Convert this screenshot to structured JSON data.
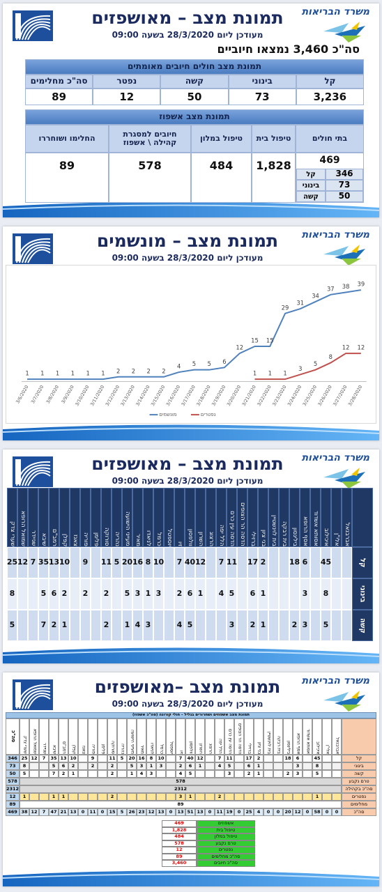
{
  "slide1": {
    "ministry": "משרד הבריאות",
    "title": "תמונת מצב – מאושפזים",
    "subtitle": "מעודכן ליום 28/3/2020 בשעה 09:00",
    "bullet": "סה\"כ 3,460 נמצאו חיוביים",
    "confirmed": {
      "title": "תמונת מצב חולים חיובים מאומתים",
      "headers": [
        "קל",
        "בינוני",
        "קשה",
        "נפטר",
        "סה\"כ מחלימים"
      ],
      "values": [
        "3,236",
        "73",
        "50",
        "12",
        "89"
      ]
    },
    "hospitalization": {
      "title": "תמונת מצב אשפוז",
      "headers": [
        "בתי חולים",
        "טיפול בית",
        "טיפול במלון",
        "חיובים למסגרת קהילה \\ אשפוז",
        "החלימו ושוחררו"
      ],
      "values": [
        "469",
        "1,828",
        "484",
        "578",
        "89"
      ],
      "breakdown": [
        {
          "label": "קל",
          "value": 346
        },
        {
          "label": "בינוני",
          "value": 73
        },
        {
          "label": "קשה",
          "value": 50
        }
      ]
    }
  },
  "slide2": {
    "ministry": "משרד הבריאות",
    "title": "תמונת מצב – מונשמים",
    "subtitle": "מעודכן ליום 28/3/2020 בשעה 09:00"
  },
  "chart_data": {
    "type": "line",
    "x": [
      "3/6/2020",
      "3/7/2020",
      "3/8/2020",
      "3/9/2020",
      "3/10/2020",
      "3/11/2020",
      "3/12/2020",
      "3/13/2020",
      "3/14/2020",
      "3/15/2020",
      "3/16/2020",
      "3/17/2020",
      "3/18/2020",
      "3/19/2020",
      "3/20/2020",
      "3/21/2020",
      "3/22/2020",
      "3/23/2020",
      "3/24/2020",
      "3/25/2020",
      "3/26/2020",
      "3/27/2020",
      "3/28/2020"
    ],
    "series": [
      {
        "name": "מונשמים",
        "color": "#4f81bd",
        "values": [
          1,
          1,
          1,
          1,
          1,
          1,
          2,
          2,
          2,
          2,
          4,
          5,
          5,
          6,
          12,
          15,
          15,
          29,
          31,
          34,
          37,
          38,
          39
        ]
      },
      {
        "name": "נפטרים",
        "color": "#c0504d",
        "values": [
          null,
          null,
          null,
          null,
          null,
          null,
          null,
          null,
          null,
          null,
          null,
          null,
          null,
          null,
          null,
          1,
          1,
          1,
          3,
          5,
          8,
          12,
          12
        ]
      }
    ],
    "ylim": [
      0,
      45
    ],
    "legend": "bottom"
  },
  "hospitals": [
    "שערי צדק",
    "שמואל הרופא",
    "שניידר",
    "שיבא",
    "רמב\"ם",
    "קפלן",
    "צאנז",
    "פוריה",
    "פלימן",
    "סורוקה",
    "נהריה",
    "מעייני הישועה",
    "מאיר",
    "לניאדו",
    "כרמל",
    "יוספטל",
    "זיו",
    "וולפסון",
    "השרון",
    "הרצוג",
    "הלל יפה",
    "הדסה עין כרם",
    "הדסה הר הצופים",
    "ברזילי",
    "בני ציון",
    "בית לוינשטיין",
    "בית רבקה",
    "בילינסון",
    "אסף הרופא",
    "אסותא אשדוד",
    "איכילוב",
    "אלי\"ן",
    "אברבנאל"
  ],
  "slide3": {
    "ministry": "משרד הבריאות",
    "title": "תמונת מצב – מאושפזים",
    "subtitle": "מעודכן ליום 28/3/2020 בשעה 09:00",
    "rows": [
      {
        "label": "קל",
        "values": [
          25,
          12,
          7,
          35,
          13,
          10,
          null,
          9,
          null,
          11,
          5,
          20,
          16,
          8,
          10,
          null,
          7,
          40,
          12,
          null,
          7,
          11,
          null,
          17,
          2,
          null,
          null,
          18,
          6,
          null,
          45,
          null,
          null
        ]
      },
      {
        "label": "בינוני",
        "values": [
          8,
          null,
          null,
          5,
          6,
          2,
          null,
          2,
          null,
          2,
          null,
          5,
          3,
          1,
          3,
          null,
          2,
          6,
          1,
          null,
          4,
          5,
          null,
          6,
          1,
          null,
          null,
          null,
          3,
          null,
          8,
          null,
          null
        ]
      },
      {
        "label": "קשה",
        "values": [
          5,
          null,
          null,
          7,
          2,
          1,
          null,
          null,
          null,
          2,
          null,
          1,
          4,
          3,
          null,
          null,
          4,
          5,
          null,
          null,
          null,
          3,
          null,
          2,
          1,
          null,
          null,
          2,
          3,
          null,
          5,
          null,
          null
        ]
      }
    ]
  },
  "slide4": {
    "ministry": "משרד הבריאות",
    "title": "תמונת מצב –מאושפזים",
    "subtitle": "מעודכן ליום 28/3/2020 בשעה 09:00",
    "banner": "תמונת מצב אשפוזים ושחרורים בגליל - חולי קורונה (סה\"כ אשפוז)",
    "total_header": "סה\"כ",
    "rows": [
      {
        "label": "קל",
        "total": 346,
        "values": [
          25,
          12,
          7,
          35,
          13,
          10,
          null,
          9,
          null,
          11,
          5,
          20,
          16,
          8,
          10,
          null,
          7,
          40,
          12,
          null,
          7,
          11,
          null,
          17,
          2,
          null,
          null,
          18,
          6,
          null,
          45,
          null,
          null
        ]
      },
      {
        "label": "בינוני",
        "total": 73,
        "values": [
          8,
          null,
          null,
          5,
          6,
          2,
          null,
          2,
          null,
          2,
          null,
          5,
          3,
          1,
          3,
          null,
          2,
          6,
          1,
          null,
          4,
          5,
          null,
          6,
          1,
          null,
          null,
          null,
          3,
          null,
          8,
          null,
          null
        ]
      },
      {
        "label": "קשה",
        "total": 50,
        "values": [
          5,
          null,
          null,
          7,
          2,
          1,
          null,
          null,
          null,
          2,
          null,
          1,
          4,
          3,
          null,
          null,
          4,
          5,
          null,
          null,
          null,
          3,
          null,
          2,
          1,
          null,
          null,
          2,
          3,
          null,
          5,
          null,
          null
        ]
      },
      {
        "label": "טרם נקבע",
        "total": 578,
        "merged": 578
      },
      {
        "label": "סה\"כ בקהילה",
        "total": 2312,
        "merged": 2312
      },
      {
        "label": "נפטרים",
        "total": 12,
        "values": [
          1,
          null,
          null,
          1,
          1,
          null,
          null,
          null,
          null,
          2,
          null,
          null,
          null,
          null,
          null,
          null,
          3,
          1,
          null,
          null,
          2,
          null,
          null,
          null,
          null,
          null,
          null,
          null,
          null,
          null,
          1,
          null,
          null
        ]
      },
      {
        "label": "מחלימים",
        "total": 89,
        "merged": 89
      },
      {
        "label": "סה\"כ",
        "total": 469,
        "values": [
          38,
          12,
          7,
          47,
          21,
          13,
          0,
          11,
          0,
          15,
          5,
          26,
          23,
          12,
          13,
          0,
          13,
          51,
          13,
          0,
          11,
          19,
          0,
          25,
          4,
          0,
          0,
          20,
          12,
          0,
          58,
          0,
          0
        ]
      }
    ],
    "summary": [
      {
        "label": "אשפוזים",
        "value": "469"
      },
      {
        "label": "טיפול בית",
        "value": "1,828"
      },
      {
        "label": "טיפול במלון",
        "value": "484"
      },
      {
        "label": "טרם נקבע",
        "value": "578"
      },
      {
        "label": "נפטרים",
        "value": "12"
      },
      {
        "label": "סה\"כ מחלימים",
        "value": "89"
      },
      {
        "label": "סה\"כ חיובים",
        "value": "3,460"
      }
    ]
  }
}
